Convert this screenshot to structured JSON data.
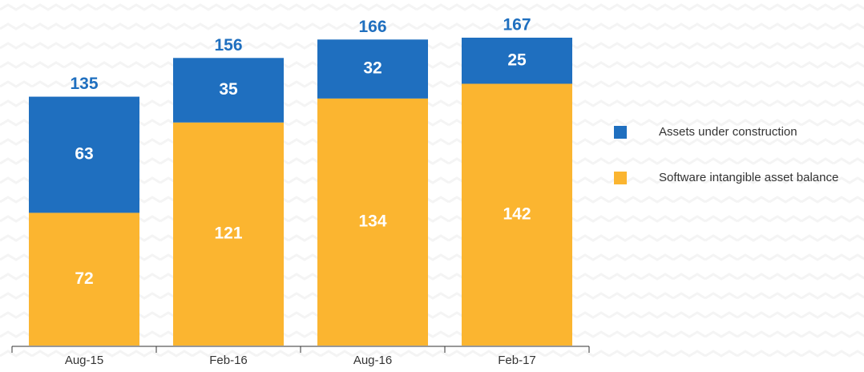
{
  "chart_data": {
    "type": "stacked_bar",
    "categories": [
      "Aug-15",
      "Feb-16",
      "Aug-16",
      "Feb-17"
    ],
    "series": [
      {
        "name": "Software intangible asset balance",
        "color": "#fbb530",
        "values": [
          72,
          121,
          134,
          142
        ]
      },
      {
        "name": "Assets under construction",
        "color": "#1f6fbf",
        "values": [
          63,
          35,
          32,
          25
        ]
      }
    ],
    "totals": [
      135,
      156,
      166,
      167
    ],
    "total_color": "#1f6fbf"
  }
}
